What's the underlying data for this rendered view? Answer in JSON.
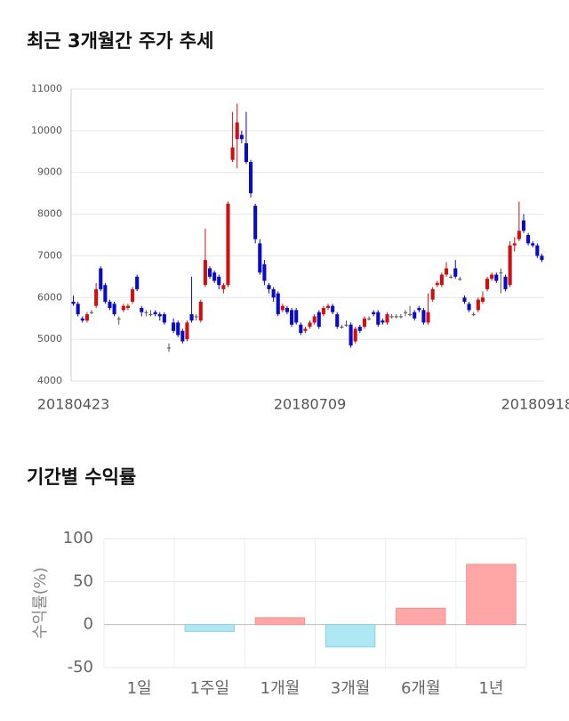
{
  "chart_data": [
    {
      "type": "candlestick",
      "title": "최근 3개월간 주가 추세",
      "categories": [
        "20180423",
        null,
        null,
        null,
        null,
        null,
        null,
        null,
        null,
        null,
        null,
        null,
        null,
        null,
        null,
        null,
        null,
        null,
        null,
        null,
        null,
        null,
        null,
        null,
        null,
        null,
        null,
        null,
        null,
        null,
        null,
        null,
        null,
        null,
        null,
        null,
        null,
        null,
        null,
        null,
        null,
        null,
        null,
        null,
        null,
        null,
        null,
        null,
        null,
        null,
        null,
        null,
        "20180709",
        null,
        null,
        null,
        null,
        null,
        null,
        null,
        null,
        null,
        null,
        null,
        null,
        null,
        null,
        null,
        null,
        null,
        null,
        null,
        null,
        null,
        null,
        null,
        null,
        null,
        null,
        null,
        null,
        null,
        null,
        null,
        null,
        null,
        null,
        null,
        null,
        null,
        null,
        null,
        null,
        null,
        null,
        null,
        null,
        null,
        null,
        null,
        null,
        null,
        "20180918",
        null
      ],
      "open": [
        5900,
        5850,
        5500,
        5450,
        5650,
        5800,
        6700,
        6300,
        5900,
        5850,
        5500,
        5700,
        5750,
        5900,
        6500,
        5750,
        5650,
        5600,
        5650,
        5600,
        5600,
        4800,
        5400,
        5400,
        5200,
        5000,
        5600,
        5550,
        5450,
        6300,
        6700,
        6600,
        6500,
        6200,
        6300,
        9300,
        9800,
        9900,
        9700,
        9250,
        8200,
        7300,
        6800,
        6300,
        6200,
        6100,
        5700,
        5750,
        5700,
        5700,
        5350,
        5200,
        5300,
        5400,
        5650,
        5600,
        5750,
        5800,
        5600,
        5300,
        5350,
        5350,
        4950,
        5300,
        5300,
        5500,
        5650,
        5650,
        5450,
        5400,
        5550,
        5550,
        5550,
        5650,
        5600,
        5650,
        5750,
        5700,
        5400,
        5950,
        6300,
        6300,
        6550,
        6500,
        6700,
        6450,
        6000,
        5850,
        5600,
        5700,
        5900,
        6200,
        6450,
        6550,
        6600,
        6500,
        6300,
        7250,
        7400,
        7850,
        7500,
        7300,
        7250,
        7000
      ],
      "high": [
        6050,
        5900,
        5550,
        5650,
        5700,
        6350,
        6750,
        6350,
        5950,
        5900,
        5550,
        5850,
        5850,
        6250,
        6550,
        5800,
        5700,
        5700,
        5700,
        5650,
        5650,
        4900,
        5500,
        5450,
        5250,
        5450,
        6500,
        5600,
        5950,
        7650,
        6750,
        6650,
        6550,
        6350,
        8300,
        10450,
        10650,
        10000,
        10450,
        9300,
        8250,
        7400,
        6900,
        6350,
        6250,
        6150,
        5850,
        5800,
        5750,
        5750,
        5400,
        5300,
        5450,
        5600,
        5700,
        5800,
        5850,
        5850,
        5650,
        5350,
        5450,
        5400,
        5300,
        5350,
        5550,
        5550,
        5700,
        5700,
        5500,
        5650,
        5600,
        5600,
        5600,
        5700,
        5800,
        5700,
        5800,
        5750,
        6100,
        6250,
        6400,
        6600,
        6850,
        6550,
        6900,
        6500,
        6050,
        5900,
        5650,
        6000,
        6150,
        6500,
        6600,
        6600,
        6700,
        6550,
        7350,
        7450,
        8300,
        8000,
        7550,
        7350,
        7300,
        7050
      ],
      "low": [
        5800,
        5550,
        5400,
        5400,
        5600,
        5750,
        6150,
        5850,
        5700,
        5550,
        5350,
        5650,
        5700,
        5850,
        6150,
        5550,
        5550,
        5550,
        5550,
        5450,
        5350,
        4700,
        5150,
        5050,
        4900,
        4950,
        5400,
        5450,
        5400,
        6250,
        6450,
        6350,
        6200,
        6100,
        6250,
        9250,
        9100,
        9700,
        9200,
        8400,
        7300,
        6550,
        6300,
        6100,
        5900,
        5550,
        5650,
        5600,
        5300,
        5350,
        5100,
        5150,
        5250,
        5350,
        5250,
        5550,
        5700,
        5600,
        5250,
        5250,
        5300,
        4800,
        4900,
        5150,
        5250,
        5450,
        5550,
        5300,
        5350,
        5350,
        5500,
        5500,
        5500,
        5550,
        5550,
        5450,
        5650,
        5350,
        5350,
        5900,
        6250,
        6250,
        6500,
        6450,
        6450,
        6400,
        5850,
        5650,
        5550,
        5650,
        5850,
        6150,
        6400,
        6350,
        6100,
        6150,
        6250,
        7100,
        7350,
        7550,
        7250,
        7200,
        6950,
        6850
      ],
      "close": [
        5850,
        5600,
        5450,
        5600,
        5650,
        6200,
        6200,
        5900,
        5750,
        5600,
        5500,
        5800,
        5800,
        6200,
        6200,
        5650,
        5650,
        5600,
        5600,
        5550,
        5400,
        4800,
        5200,
        5100,
        4950,
        5400,
        5450,
        5550,
        5900,
        6900,
        6500,
        6400,
        6300,
        6300,
        8250,
        9600,
        10200,
        9800,
        9250,
        8500,
        7400,
        6600,
        6400,
        6200,
        6000,
        5600,
        5800,
        5650,
        5350,
        5400,
        5150,
        5250,
        5400,
        5550,
        5300,
        5750,
        5800,
        5650,
        5300,
        5300,
        5350,
        4850,
        5250,
        5200,
        5500,
        5500,
        5600,
        5350,
        5400,
        5600,
        5550,
        5550,
        5550,
        5650,
        5600,
        5500,
        5700,
        5400,
        5650,
        6200,
        6350,
        6550,
        6700,
        6500,
        6500,
        6450,
        5900,
        5700,
        5600,
        5950,
        6000,
        6450,
        6550,
        6400,
        6600,
        6200,
        7250,
        7300,
        7600,
        7600,
        7300,
        7250,
        7000,
        6900
      ],
      "up_color": "#d01010",
      "down_color": "#0a0ac8",
      "flat_color": "#555555",
      "ylim": [
        4000,
        11000
      ],
      "yticks": [
        4000,
        5000,
        6000,
        7000,
        8000,
        9000,
        10000,
        11000
      ],
      "grid": true
    },
    {
      "type": "bar",
      "title": "기간별 수익률",
      "ylabel": "수익률(%)",
      "categories": [
        "1일",
        "1주일",
        "1개월",
        "3개월",
        "6개월",
        "1년"
      ],
      "values": [
        0,
        -8,
        8,
        -26,
        19,
        70
      ],
      "positive_color": "#ffa6a6",
      "negative_color": "#aee8f4",
      "ylim": [
        -50,
        100
      ],
      "yticks": [
        -50,
        0,
        50,
        100
      ],
      "grid": true
    }
  ]
}
